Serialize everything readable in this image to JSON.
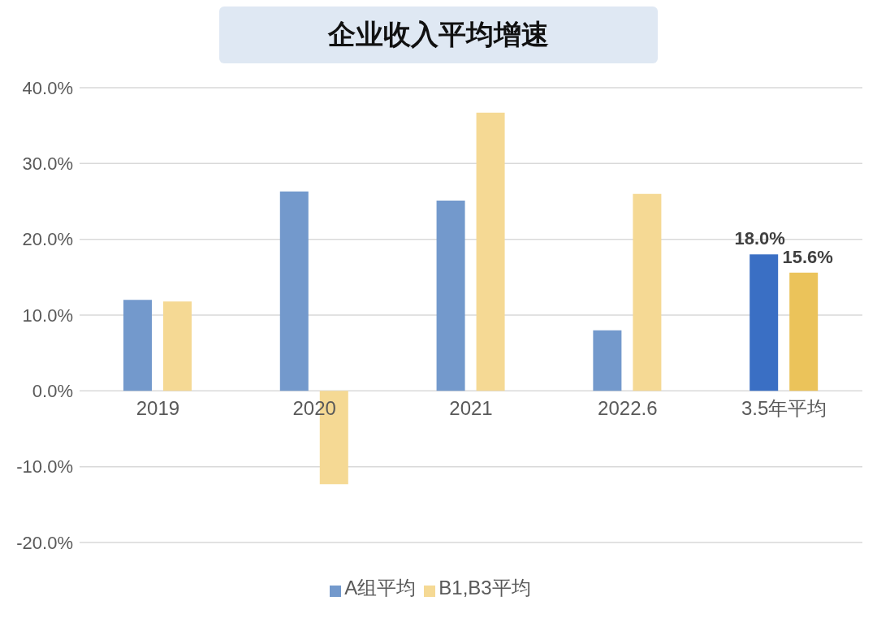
{
  "chart_data": {
    "type": "bar",
    "title": "企业收入平均增速",
    "categories": [
      "2019",
      "2020",
      "2021",
      "2022.6",
      "3.5年平均"
    ],
    "series": [
      {
        "name": "A组平均",
        "color": "#7399cc",
        "colors": [
          "#7399cc",
          "#7399cc",
          "#7399cc",
          "#7399cc",
          "#3a6fc4"
        ],
        "values": [
          12.0,
          26.3,
          25.1,
          8.0,
          18.0
        ],
        "value_labels": [
          null,
          null,
          null,
          null,
          "18.0%"
        ]
      },
      {
        "name": "B1,B3平均",
        "color": "#f5d994",
        "colors": [
          "#f5d994",
          "#f5d994",
          "#f5d994",
          "#f5d994",
          "#ebc35a"
        ],
        "values": [
          11.8,
          -12.3,
          36.7,
          26.0,
          15.6
        ],
        "value_labels": [
          null,
          null,
          null,
          null,
          "15.6%"
        ]
      }
    ],
    "ylim": [
      -20,
      40
    ],
    "yticks": [
      {
        "value": -20,
        "label": "-20.0%"
      },
      {
        "value": -10,
        "label": "-10.0%"
      },
      {
        "value": 0,
        "label": "0.0%"
      },
      {
        "value": 10,
        "label": "10.0%"
      },
      {
        "value": 20,
        "label": "20.0%"
      },
      {
        "value": 30,
        "label": "30.0%"
      },
      {
        "value": 40,
        "label": "40.0%"
      }
    ],
    "grid": "y",
    "legend": "bottom"
  }
}
